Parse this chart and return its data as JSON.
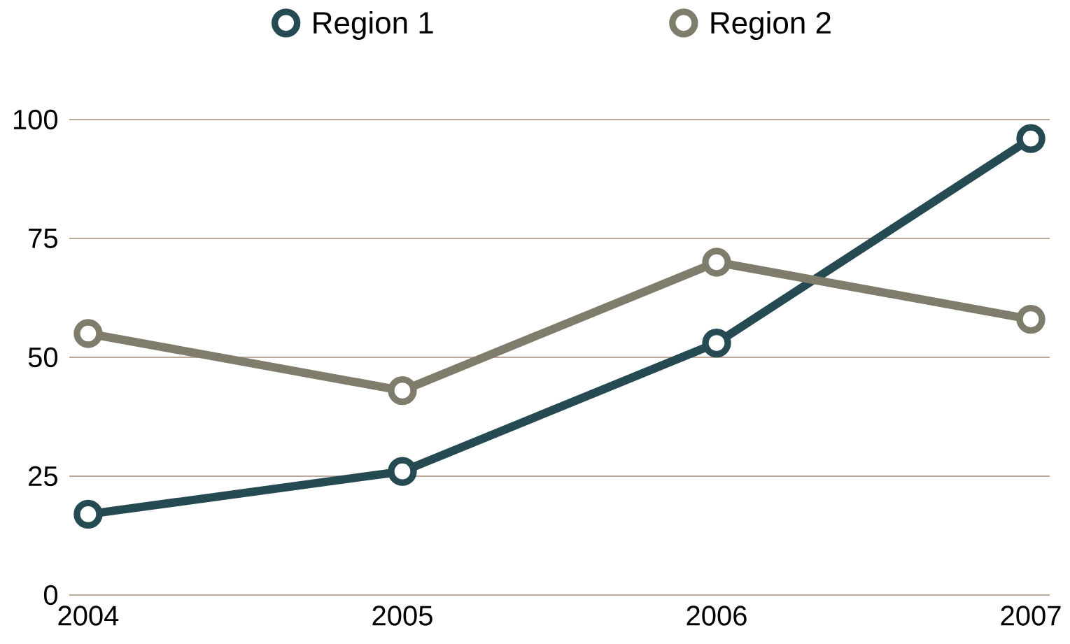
{
  "chart_data": {
    "type": "line",
    "categories": [
      "2004",
      "2005",
      "2006",
      "2007"
    ],
    "series": [
      {
        "name": "Region 1",
        "color": "#264a52",
        "values": [
          17,
          26,
          53,
          96
        ]
      },
      {
        "name": "Region 2",
        "color": "#807c6b",
        "values": [
          55,
          43,
          70,
          58
        ]
      }
    ],
    "ylim": [
      0,
      100
    ],
    "yticks": [
      0,
      25,
      50,
      75,
      100
    ],
    "grid": "y",
    "legend": "top",
    "marker": "circle",
    "line_style": "solid"
  }
}
